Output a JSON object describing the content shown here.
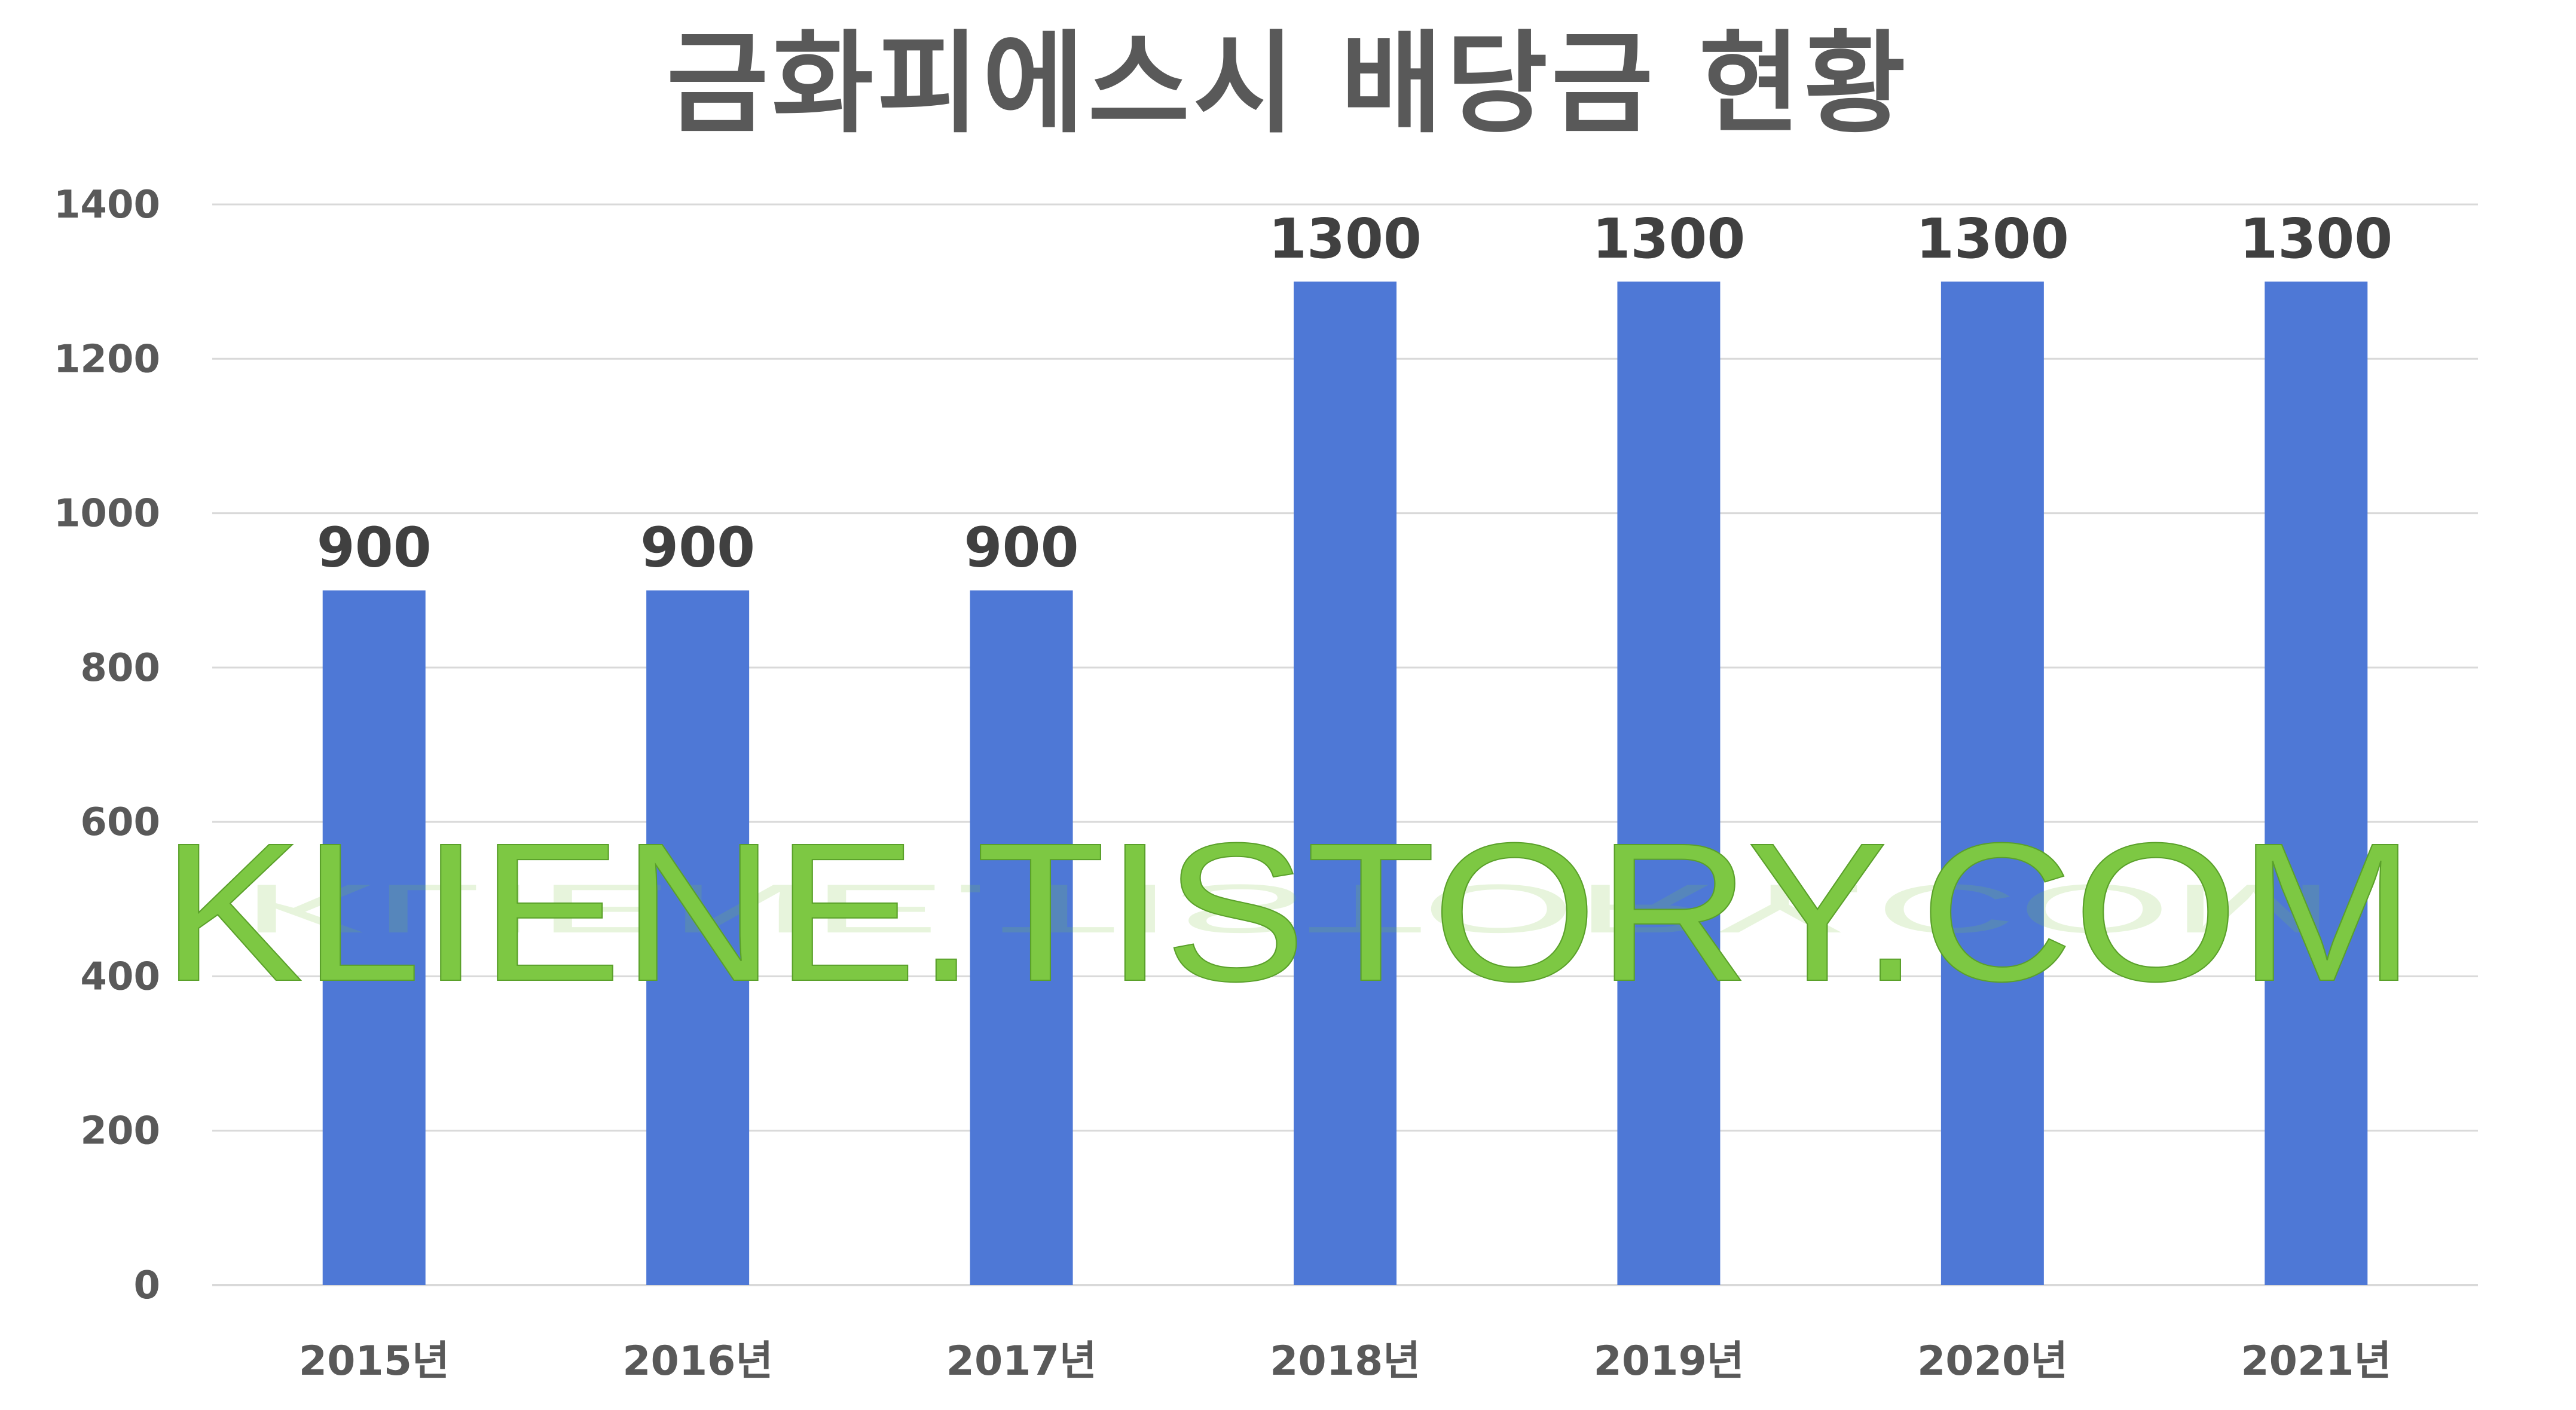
{
  "chart_data": {
    "type": "bar",
    "title": "금화피에스시 배당금 현황",
    "categories": [
      "2015년",
      "2016년",
      "2017년",
      "2018년",
      "2019년",
      "2020년",
      "2021년"
    ],
    "values": [
      900,
      900,
      900,
      1300,
      1300,
      1300,
      1300
    ],
    "data_labels": [
      "900",
      "900",
      "900",
      "1300",
      "1300",
      "1300",
      "1300"
    ],
    "y_ticks": [
      "0",
      "200",
      "400",
      "600",
      "800",
      "1000",
      "1200",
      "1400"
    ],
    "ylim": [
      0,
      1400
    ],
    "xlabel": "",
    "ylabel": "",
    "grid": true,
    "legend": "none",
    "bar_color": "#4e78d6",
    "gridline_color": "#d9d9d9"
  },
  "watermark": {
    "text": "KLIENE.TISTORY.COM",
    "color": "#7dc843"
  }
}
